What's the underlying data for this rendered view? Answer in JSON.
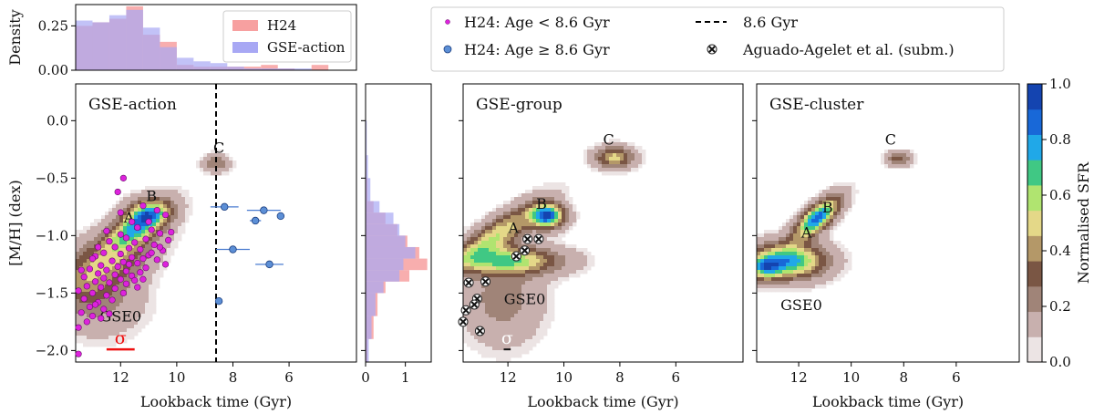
{
  "chart_data": [
    {
      "type": "bar",
      "panel": "top-histogram",
      "ylabel": "Density",
      "xlim": [
        13.6,
        3.6
      ],
      "ylim": [
        0,
        0.37
      ],
      "yticks": [
        "0.00",
        "0.25"
      ],
      "legend": {
        "placement": "top-right",
        "entries": [
          {
            "name": "H24",
            "color": "#f7a0a0"
          },
          {
            "name": "GSE-action",
            "color": "#a8a8f4"
          }
        ]
      },
      "series": [
        {
          "name": "H24",
          "color": "#f7a0a0",
          "bins": [
            [
              13.6,
              13.0,
              0.25
            ],
            [
              13.0,
              12.4,
              0.27
            ],
            [
              12.4,
              11.8,
              0.29
            ],
            [
              11.8,
              11.2,
              0.36
            ],
            [
              11.2,
              10.6,
              0.2
            ],
            [
              10.6,
              10.0,
              0.16
            ],
            [
              10.0,
              9.4,
              0.03
            ],
            [
              9.4,
              8.8,
              0.02
            ],
            [
              8.8,
              8.2,
              0.02
            ],
            [
              8.2,
              7.6,
              0.02
            ],
            [
              7.6,
              7.0,
              0.02
            ],
            [
              7.0,
              6.4,
              0.03
            ],
            [
              6.4,
              5.8,
              0.01
            ],
            [
              5.8,
              5.2,
              0.0
            ],
            [
              5.2,
              4.6,
              0.03
            ]
          ]
        },
        {
          "name": "GSE-action",
          "color": "#a8a8f4",
          "bins": [
            [
              13.6,
              13.0,
              0.28
            ],
            [
              13.0,
              12.4,
              0.27
            ],
            [
              12.4,
              11.8,
              0.31
            ],
            [
              11.8,
              11.2,
              0.34
            ],
            [
              11.2,
              10.6,
              0.24
            ],
            [
              10.6,
              10.0,
              0.13
            ],
            [
              10.0,
              9.4,
              0.07
            ],
            [
              9.4,
              8.8,
              0.05
            ],
            [
              8.8,
              8.2,
              0.04
            ],
            [
              8.2,
              7.6,
              0.02
            ],
            [
              7.6,
              7.0,
              0.01
            ],
            [
              7.0,
              6.4,
              0.01
            ],
            [
              6.4,
              5.8,
              0.01
            ],
            [
              5.8,
              5.2,
              0.01
            ],
            [
              5.2,
              4.6,
              0.0
            ]
          ]
        }
      ]
    },
    {
      "type": "heatmap",
      "panel": "GSE-action",
      "title": "GSE-action",
      "xlabel": "Lookback time (Gyr)",
      "ylabel": "[M/H] (dex)",
      "xlim": [
        13.6,
        3.6
      ],
      "ylim": [
        -2.1,
        0.32
      ],
      "xticks": [
        "12",
        "10",
        "8",
        "6"
      ],
      "yticks": [
        "0.0",
        "−0.5",
        "−1.0",
        "−1.5",
        "−2.0"
      ],
      "vline": {
        "x": 8.6,
        "label": "8.6 Gyr"
      },
      "components": [
        {
          "x": 12.6,
          "y": -1.25,
          "sx": 1.1,
          "sy": 0.16,
          "amp": 0.6,
          "rot": 0.1
        },
        {
          "x": 11.4,
          "y": -0.92,
          "sx": 0.7,
          "sy": 0.1,
          "amp": 1.0,
          "rot": 0.12
        },
        {
          "x": 11.0,
          "y": -0.8,
          "sx": 0.5,
          "sy": 0.08,
          "amp": 0.65,
          "rot": 0.0
        },
        {
          "x": 12.8,
          "y": -1.55,
          "sx": 1.0,
          "sy": 0.2,
          "amp": 0.25,
          "rot": 0.0
        },
        {
          "x": 8.6,
          "y": -0.37,
          "sx": 0.3,
          "sy": 0.05,
          "amp": 0.35,
          "rot": 0.0
        }
      ],
      "labels": [
        {
          "text": "A",
          "x": 11.7,
          "y": -0.84
        },
        {
          "text": "B",
          "x": 10.9,
          "y": -0.65
        },
        {
          "text": "C",
          "x": 8.5,
          "y": -0.23
        },
        {
          "text": "GSE0",
          "x": 12.0,
          "y": -1.7
        }
      ],
      "sigma": {
        "label": "σ",
        "x1": 12.5,
        "x2": 11.5,
        "y": -1.99,
        "color": "#ee1111"
      },
      "young_points": [
        {
          "x": 8.3,
          "y": -0.75,
          "xerr": 0.5
        },
        {
          "x": 6.9,
          "y": -0.78,
          "xerr": 0.6
        },
        {
          "x": 6.3,
          "y": -0.83,
          "xerr": 0.1
        },
        {
          "x": 7.2,
          "y": -0.87,
          "xerr": 0.2
        },
        {
          "x": 8.0,
          "y": -1.12,
          "xerr": 0.6
        },
        {
          "x": 6.7,
          "y": -1.25,
          "xerr": 0.5
        },
        {
          "x": 8.5,
          "y": -1.57,
          "xerr": 0.1
        }
      ],
      "old_points": [
        [
          11.9,
          -0.5
        ],
        [
          11.2,
          -0.74
        ],
        [
          10.7,
          -0.78
        ],
        [
          10.4,
          -0.82
        ],
        [
          11.6,
          -0.88
        ],
        [
          11.4,
          -0.93
        ],
        [
          10.9,
          -0.95
        ],
        [
          10.6,
          -0.98
        ],
        [
          12.0,
          -0.99
        ],
        [
          11.8,
          -1.02
        ],
        [
          11.1,
          -1.03
        ],
        [
          10.3,
          -1.04
        ],
        [
          12.4,
          -1.05
        ],
        [
          11.5,
          -1.06
        ],
        [
          10.8,
          -1.08
        ],
        [
          12.2,
          -1.1
        ],
        [
          11.7,
          -1.11
        ],
        [
          11.3,
          -1.12
        ],
        [
          10.5,
          -1.13
        ],
        [
          12.6,
          -1.15
        ],
        [
          12.0,
          -1.16
        ],
        [
          11.0,
          -1.17
        ],
        [
          12.9,
          -1.18
        ],
        [
          11.6,
          -1.19
        ],
        [
          11.2,
          -1.2
        ],
        [
          10.7,
          -1.21
        ],
        [
          12.3,
          -1.22
        ],
        [
          11.9,
          -1.23
        ],
        [
          11.4,
          -1.24
        ],
        [
          12.7,
          -1.26
        ],
        [
          12.1,
          -1.27
        ],
        [
          11.1,
          -1.28
        ],
        [
          13.1,
          -1.29
        ],
        [
          12.5,
          -1.3
        ],
        [
          11.8,
          -1.31
        ],
        [
          11.3,
          -1.32
        ],
        [
          12.8,
          -1.33
        ],
        [
          12.2,
          -1.34
        ],
        [
          11.6,
          -1.35
        ],
        [
          13.3,
          -1.36
        ],
        [
          12.6,
          -1.37
        ],
        [
          12.0,
          -1.38
        ],
        [
          11.5,
          -1.39
        ],
        [
          12.9,
          -1.4
        ],
        [
          12.4,
          -1.41
        ],
        [
          11.8,
          -1.42
        ],
        [
          13.2,
          -1.44
        ],
        [
          12.7,
          -1.45
        ],
        [
          12.2,
          -1.46
        ],
        [
          13.5,
          -1.48
        ],
        [
          13.0,
          -1.5
        ],
        [
          12.5,
          -1.52
        ],
        [
          13.3,
          -1.55
        ],
        [
          12.8,
          -1.58
        ],
        [
          13.1,
          -1.62
        ],
        [
          12.6,
          -1.64
        ],
        [
          13.4,
          -1.67
        ],
        [
          13.0,
          -1.7
        ],
        [
          12.7,
          -1.72
        ],
        [
          13.2,
          -1.75
        ],
        [
          13.5,
          -1.8
        ],
        [
          12.9,
          -1.6
        ],
        [
          11.9,
          -1.5
        ],
        [
          12.3,
          -1.56
        ],
        [
          11.7,
          -1.25
        ],
        [
          10.9,
          -1.15
        ],
        [
          10.2,
          -0.97
        ],
        [
          12.5,
          -0.96
        ],
        [
          11.0,
          -0.88
        ],
        [
          12.1,
          -0.62
        ],
        [
          13.5,
          -2.03
        ],
        [
          12.8,
          -1.1
        ],
        [
          13.0,
          -1.2
        ],
        [
          11.4,
          -1.45
        ],
        [
          10.4,
          -1.25
        ],
        [
          12.4,
          -1.68
        ],
        [
          13.4,
          -1.3
        ],
        [
          11.2,
          -1.38
        ],
        [
          10.6,
          -1.1
        ],
        [
          12.0,
          -0.8
        ]
      ]
    },
    {
      "type": "bar",
      "panel": "side-histogram",
      "orientation": "horizontal",
      "xlim": [
        0,
        1.65
      ],
      "xticks": [
        "0",
        "1"
      ],
      "ylim": [
        -2.1,
        0.32
      ],
      "series": [
        {
          "name": "H24",
          "color": "#f7a0a0",
          "bins": [
            [
              -2.1,
              -1.9,
              0.05
            ],
            [
              -1.9,
              -1.7,
              0.2
            ],
            [
              -1.7,
              -1.5,
              0.3
            ],
            [
              -1.5,
              -1.4,
              0.5
            ],
            [
              -1.4,
              -1.3,
              1.1
            ],
            [
              -1.3,
              -1.2,
              1.55
            ],
            [
              -1.2,
              -1.1,
              1.35
            ],
            [
              -1.1,
              -1.0,
              1.05
            ],
            [
              -1.0,
              -0.9,
              0.8
            ],
            [
              -0.9,
              -0.8,
              0.5
            ],
            [
              -0.8,
              -0.7,
              0.2
            ],
            [
              -0.7,
              -0.5,
              0.05
            ],
            [
              -0.5,
              -0.3,
              0.02
            ]
          ]
        },
        {
          "name": "GSE-action",
          "color": "#a8a8f4",
          "bins": [
            [
              -2.1,
              -1.9,
              0.08
            ],
            [
              -1.9,
              -1.7,
              0.15
            ],
            [
              -1.7,
              -1.5,
              0.25
            ],
            [
              -1.5,
              -1.4,
              0.45
            ],
            [
              -1.4,
              -1.3,
              0.85
            ],
            [
              -1.3,
              -1.2,
              0.95
            ],
            [
              -1.2,
              -1.1,
              1.25
            ],
            [
              -1.1,
              -1.0,
              1.0
            ],
            [
              -1.0,
              -0.9,
              0.85
            ],
            [
              -0.9,
              -0.8,
              0.7
            ],
            [
              -0.8,
              -0.7,
              0.35
            ],
            [
              -0.7,
              -0.5,
              0.12
            ],
            [
              -0.5,
              -0.3,
              0.06
            ],
            [
              -0.3,
              0.0,
              0.03
            ],
            [
              0.0,
              0.3,
              0.01
            ]
          ]
        }
      ]
    },
    {
      "type": "heatmap",
      "panel": "GSE-group",
      "title": "GSE-group",
      "xlabel": "Lookback time (Gyr)",
      "xlim": [
        13.6,
        3.6
      ],
      "ylim": [
        -2.1,
        0.32
      ],
      "xticks": [
        "12",
        "10",
        "8",
        "6"
      ],
      "components": [
        {
          "x": 12.4,
          "y": -1.0,
          "sx": 1.0,
          "sy": 0.1,
          "amp": 0.55,
          "rot": 0.15
        },
        {
          "x": 10.6,
          "y": -0.83,
          "sx": 0.4,
          "sy": 0.07,
          "amp": 1.0,
          "rot": 0.0
        },
        {
          "x": 12.0,
          "y": -1.22,
          "sx": 1.2,
          "sy": 0.08,
          "amp": 0.65,
          "rot": 0.0
        },
        {
          "x": 12.2,
          "y": -1.55,
          "sx": 0.9,
          "sy": 0.25,
          "amp": 0.2,
          "rot": 0.0
        },
        {
          "x": 8.2,
          "y": -0.32,
          "sx": 0.45,
          "sy": 0.06,
          "amp": 0.5,
          "rot": 0.0
        }
      ],
      "labels": [
        {
          "text": "A",
          "x": 11.8,
          "y": -0.93
        },
        {
          "text": "B",
          "x": 10.8,
          "y": -0.72
        },
        {
          "text": "C",
          "x": 8.4,
          "y": -0.16
        },
        {
          "text": "GSE0",
          "x": 11.4,
          "y": -1.55
        }
      ],
      "sigma": {
        "label": "σ",
        "x1": 12.15,
        "x2": 11.9,
        "y": -1.99,
        "color": "#ffffff"
      },
      "cross_points": [
        [
          11.3,
          -1.03
        ],
        [
          10.9,
          -1.03
        ],
        [
          11.4,
          -1.13
        ],
        [
          11.7,
          -1.18
        ],
        [
          13.4,
          -1.41
        ],
        [
          12.8,
          -1.4
        ],
        [
          13.1,
          -1.55
        ],
        [
          13.2,
          -1.6
        ],
        [
          13.5,
          -1.65
        ],
        [
          13.6,
          -1.75
        ],
        [
          13.0,
          -1.83
        ]
      ],
      "legend": {
        "placement": "top-center",
        "entries": [
          {
            "name": "H24: Age < 8.6 Gyr",
            "marker": "small-magenta-dot"
          },
          {
            "name": "8.6 Gyr",
            "marker": "dashed-line"
          },
          {
            "name": "H24: Age ≥ 8.6 Gyr",
            "marker": "blue-dot"
          },
          {
            "name": "Aguado-Agelet et al. (subm.)",
            "marker": "cross"
          }
        ]
      }
    },
    {
      "type": "heatmap",
      "panel": "GSE-cluster",
      "title": "GSE-cluster",
      "xlabel": "Lookback time (Gyr)",
      "xlim": [
        13.6,
        3.6
      ],
      "ylim": [
        -2.1,
        0.32
      ],
      "xticks": [
        "12",
        "10",
        "8",
        "6"
      ],
      "components": [
        {
          "x": 11.3,
          "y": -0.85,
          "sx": 0.55,
          "sy": 0.08,
          "amp": 0.9,
          "rot": 0.15
        },
        {
          "x": 12.4,
          "y": -1.22,
          "sx": 0.9,
          "sy": 0.1,
          "amp": 0.8,
          "rot": 0.0
        },
        {
          "x": 13.3,
          "y": -1.28,
          "sx": 0.4,
          "sy": 0.07,
          "amp": 0.5,
          "rot": 0.0
        },
        {
          "x": 8.2,
          "y": -0.33,
          "sx": 0.3,
          "sy": 0.04,
          "amp": 0.3,
          "rot": 0.0
        }
      ],
      "labels": [
        {
          "text": "A",
          "x": 11.7,
          "y": -0.97
        },
        {
          "text": "B",
          "x": 10.9,
          "y": -0.75
        },
        {
          "text": "C",
          "x": 8.5,
          "y": -0.16
        },
        {
          "text": "GSE0",
          "x": 11.9,
          "y": -1.6
        }
      ]
    },
    {
      "type": "colorbar",
      "label": "Normalised SFR",
      "range": [
        0.0,
        1.0
      ],
      "ticks": [
        "0.0",
        "0.2",
        "0.4",
        "0.6",
        "0.8",
        "1.0"
      ],
      "colormap": [
        "#ece4e4",
        "#c8b0ae",
        "#a08478",
        "#7a5644",
        "#b49868",
        "#e4d888",
        "#b0e470",
        "#40c884",
        "#20a8e8",
        "#1868d8",
        "#1444b0"
      ]
    }
  ]
}
